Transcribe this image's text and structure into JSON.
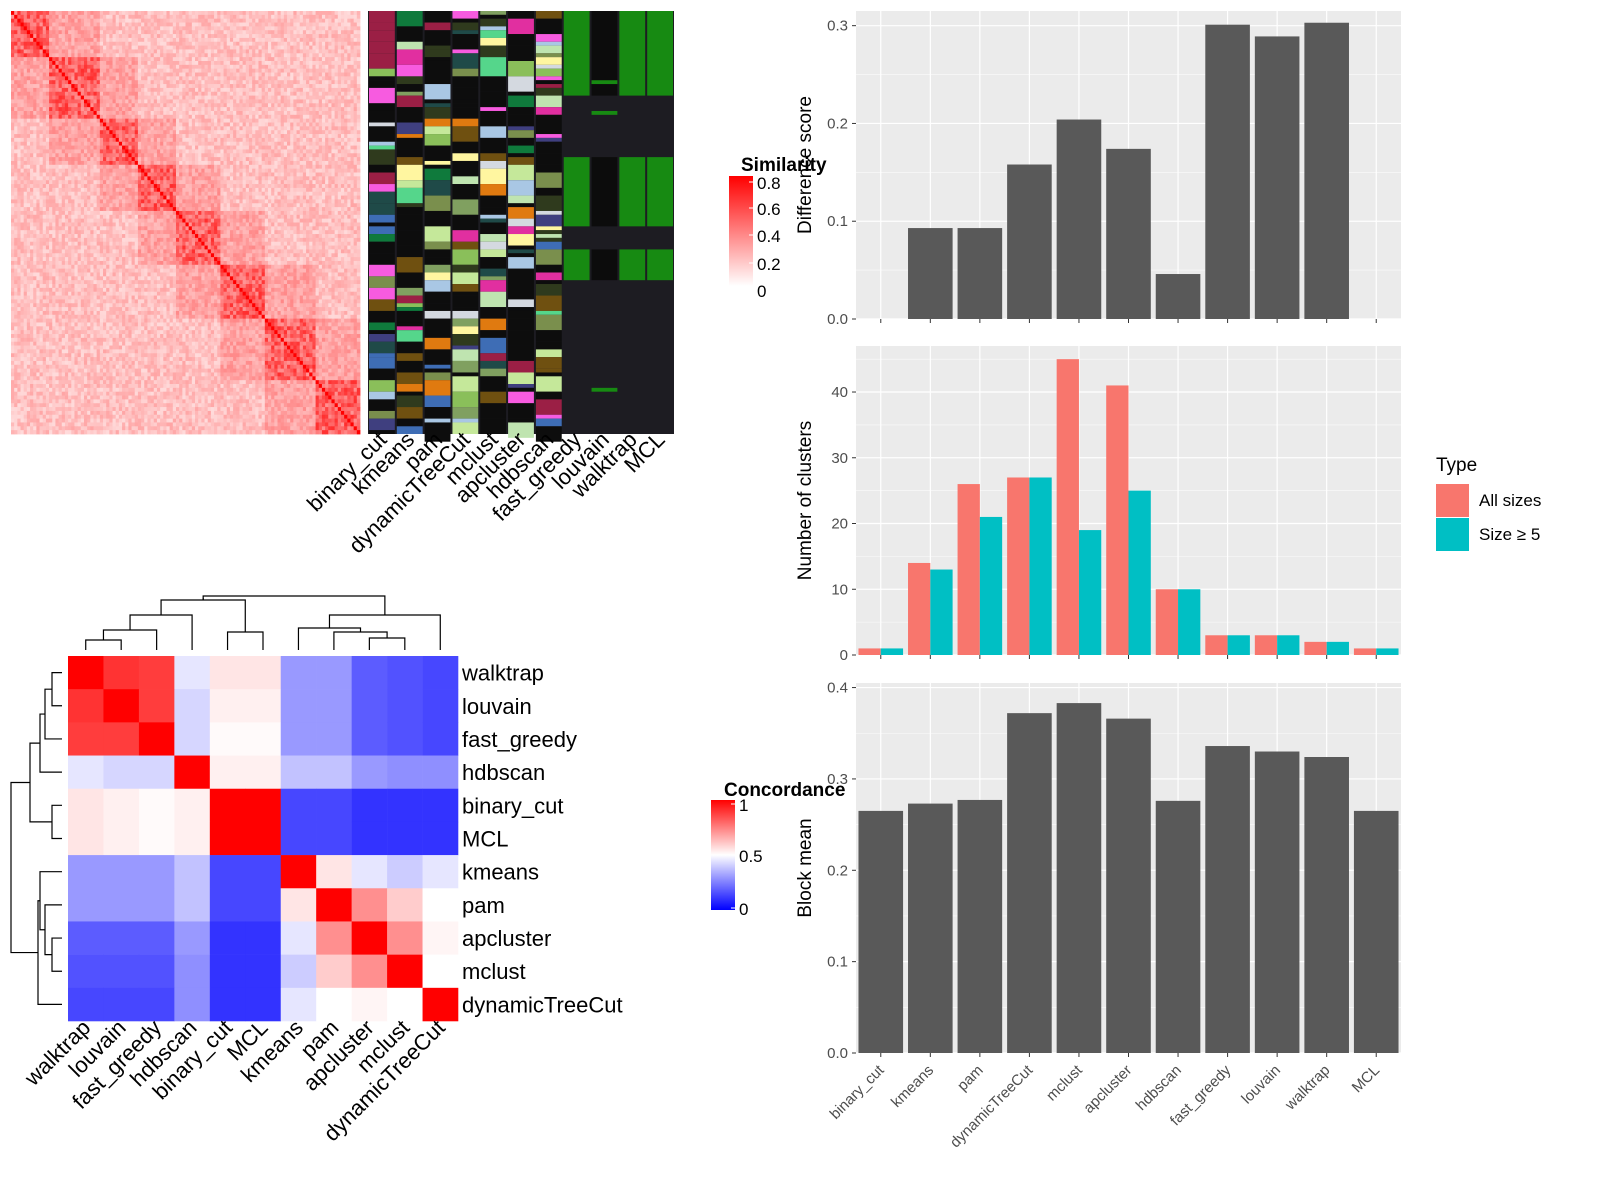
{
  "colors": {
    "panel_bg": "#ebebeb",
    "grid": "#ffffff",
    "bar_dark": "#595959",
    "series_all": "#f8766d",
    "series_size5": "#00bfc4",
    "sim_high": "#ff0000",
    "sim_low": "#ffffff",
    "conc_high": "#ff0000",
    "conc_mid": "#ffffff",
    "conc_low": "#0000ff",
    "dark_bg": "#1d1c22"
  },
  "methods": [
    "binary_cut",
    "kmeans",
    "pam",
    "dynamicTreeCut",
    "mclust",
    "apcluster",
    "hdbscan",
    "fast_greedy",
    "louvain",
    "walktrap",
    "MCL"
  ],
  "similarity_legend": {
    "title": "Similarity",
    "ticks": [
      "0.8",
      "0.6",
      "0.4",
      "0.2",
      "0"
    ]
  },
  "concordance_legend": {
    "title": "Concordance",
    "ticks": [
      "1",
      "0.5",
      "0"
    ]
  },
  "chart_data": [
    {
      "type": "heatmap",
      "name": "similarity matrix",
      "title": "",
      "legend_title": "Similarity",
      "range": [
        0,
        0.85
      ],
      "size": 110
    },
    {
      "type": "heatmap",
      "name": "cluster label annotations",
      "columns": [
        "binary_cut",
        "kmeans",
        "pam",
        "dynamicTreeCut",
        "mclust",
        "apcluster",
        "hdbscan",
        "fast_greedy",
        "louvain",
        "walktrap",
        "MCL"
      ]
    },
    {
      "type": "heatmap",
      "name": "method concordance",
      "legend_title": "Concordance",
      "range": [
        0,
        1
      ],
      "row_order": [
        "walktrap",
        "louvain",
        "fast_greedy",
        "hdbscan",
        "binary_cut",
        "MCL",
        "kmeans",
        "pam",
        "apcluster",
        "mclust",
        "dynamicTreeCut"
      ],
      "col_order": [
        "walktrap",
        "louvain",
        "fast_greedy",
        "hdbscan",
        "binary_cut",
        "MCL",
        "kmeans",
        "pam",
        "apcluster",
        "mclust",
        "dynamicTreeCut"
      ],
      "values": [
        [
          1.0,
          0.9,
          0.88,
          0.45,
          0.55,
          0.55,
          0.3,
          0.3,
          0.18,
          0.16,
          0.14
        ],
        [
          0.9,
          1.0,
          0.88,
          0.42,
          0.53,
          0.53,
          0.3,
          0.3,
          0.18,
          0.16,
          0.14
        ],
        [
          0.88,
          0.88,
          1.0,
          0.42,
          0.51,
          0.51,
          0.3,
          0.3,
          0.18,
          0.16,
          0.14
        ],
        [
          0.45,
          0.42,
          0.42,
          1.0,
          0.53,
          0.53,
          0.38,
          0.38,
          0.3,
          0.28,
          0.28
        ],
        [
          0.55,
          0.53,
          0.51,
          0.53,
          1.0,
          1.0,
          0.14,
          0.14,
          0.1,
          0.1,
          0.1
        ],
        [
          0.55,
          0.53,
          0.51,
          0.53,
          1.0,
          1.0,
          0.14,
          0.14,
          0.1,
          0.1,
          0.1
        ],
        [
          0.3,
          0.3,
          0.3,
          0.38,
          0.14,
          0.14,
          1.0,
          0.55,
          0.45,
          0.4,
          0.45
        ],
        [
          0.3,
          0.3,
          0.3,
          0.38,
          0.14,
          0.14,
          0.55,
          1.0,
          0.72,
          0.6,
          0.5
        ],
        [
          0.18,
          0.18,
          0.18,
          0.3,
          0.1,
          0.1,
          0.45,
          0.72,
          1.0,
          0.72,
          0.52
        ],
        [
          0.16,
          0.16,
          0.16,
          0.28,
          0.1,
          0.1,
          0.4,
          0.6,
          0.72,
          1.0,
          0.5
        ],
        [
          0.14,
          0.14,
          0.14,
          0.28,
          0.1,
          0.1,
          0.45,
          0.5,
          0.52,
          0.5,
          1.0
        ]
      ]
    },
    {
      "type": "bar",
      "categories": [
        "binary_cut",
        "kmeans",
        "pam",
        "dynamicTreeCut",
        "mclust",
        "apcluster",
        "hdbscan",
        "fast_greedy",
        "louvain",
        "walktrap",
        "MCL"
      ],
      "values": [
        0,
        0.093,
        0.093,
        0.158,
        0.204,
        0.174,
        0.046,
        0.301,
        0.289,
        0.303,
        0
      ],
      "xlabel": "",
      "ylabel": "Difference score",
      "ylim": [
        0,
        0.315
      ],
      "yticks": [
        0,
        0.1,
        0.2,
        0.3
      ],
      "ytick_labels": [
        "0.0",
        "0.1",
        "0.2",
        "0.3"
      ],
      "grid": true
    },
    {
      "type": "bar",
      "categories": [
        "binary_cut",
        "kmeans",
        "pam",
        "dynamicTreeCut",
        "mclust",
        "apcluster",
        "hdbscan",
        "fast_greedy",
        "louvain",
        "walktrap",
        "MCL"
      ],
      "series": [
        {
          "name": "All sizes",
          "values": [
            1,
            14,
            26,
            27,
            45,
            41,
            10,
            3,
            3,
            2,
            1
          ]
        },
        {
          "name": "Size ≥ 5",
          "values": [
            1,
            13,
            21,
            27,
            19,
            25,
            10,
            3,
            3,
            2,
            1
          ]
        }
      ],
      "xlabel": "",
      "ylabel": "Number of clusters",
      "ylim": [
        0,
        47
      ],
      "yticks": [
        0,
        10,
        20,
        30,
        40
      ],
      "legend": {
        "title": "Type",
        "position": "right"
      },
      "grid": true
    },
    {
      "type": "bar",
      "categories": [
        "binary_cut",
        "kmeans",
        "pam",
        "dynamicTreeCut",
        "mclust",
        "apcluster",
        "hdbscan",
        "fast_greedy",
        "louvain",
        "walktrap",
        "MCL"
      ],
      "values": [
        0.265,
        0.273,
        0.277,
        0.372,
        0.383,
        0.366,
        0.276,
        0.336,
        0.33,
        0.324,
        0.265
      ],
      "xlabel": "",
      "ylabel": "Block mean",
      "ylim": [
        0,
        0.405
      ],
      "yticks": [
        0,
        0.1,
        0.2,
        0.3,
        0.4
      ],
      "ytick_labels": [
        "0.0",
        "0.1",
        "0.2",
        "0.3",
        "0.4"
      ],
      "grid": true
    }
  ]
}
